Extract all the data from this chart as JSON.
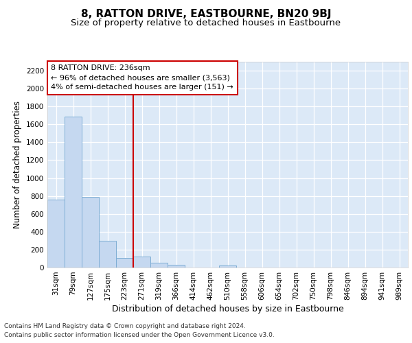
{
  "title1": "8, RATTON DRIVE, EASTBOURNE, BN20 9BJ",
  "title2": "Size of property relative to detached houses in Eastbourne",
  "xlabel": "Distribution of detached houses by size in Eastbourne",
  "ylabel": "Number of detached properties",
  "categories": [
    "31sqm",
    "79sqm",
    "127sqm",
    "175sqm",
    "223sqm",
    "271sqm",
    "319sqm",
    "366sqm",
    "414sqm",
    "462sqm",
    "510sqm",
    "558sqm",
    "606sqm",
    "654sqm",
    "702sqm",
    "750sqm",
    "798sqm",
    "846sqm",
    "894sqm",
    "941sqm",
    "989sqm"
  ],
  "values": [
    760,
    1690,
    790,
    300,
    110,
    120,
    50,
    30,
    0,
    0,
    20,
    0,
    0,
    0,
    0,
    0,
    0,
    0,
    0,
    0,
    0
  ],
  "bar_color": "#c5d8f0",
  "bar_edge_color": "#7dadd4",
  "vline_x": 4.5,
  "annotation_line1": "8 RATTON DRIVE: 236sqm",
  "annotation_line2": "← 96% of detached houses are smaller (3,563)",
  "annotation_line3": "4% of semi-detached houses are larger (151) →",
  "annotation_box_color": "#ffffff",
  "annotation_box_edge_color": "#cc0000",
  "vline_color": "#cc0000",
  "ylim": [
    0,
    2300
  ],
  "yticks": [
    0,
    200,
    400,
    600,
    800,
    1000,
    1200,
    1400,
    1600,
    1800,
    2000,
    2200
  ],
  "footer1": "Contains HM Land Registry data © Crown copyright and database right 2024.",
  "footer2": "Contains public sector information licensed under the Open Government Licence v3.0.",
  "bg_color": "#ffffff",
  "plot_bg_color": "#dce9f7",
  "grid_color": "#ffffff",
  "title1_fontsize": 11,
  "title2_fontsize": 9.5,
  "ylabel_fontsize": 8.5,
  "xlabel_fontsize": 9,
  "tick_fontsize": 7.5,
  "ann_fontsize": 8,
  "footer_fontsize": 6.5
}
